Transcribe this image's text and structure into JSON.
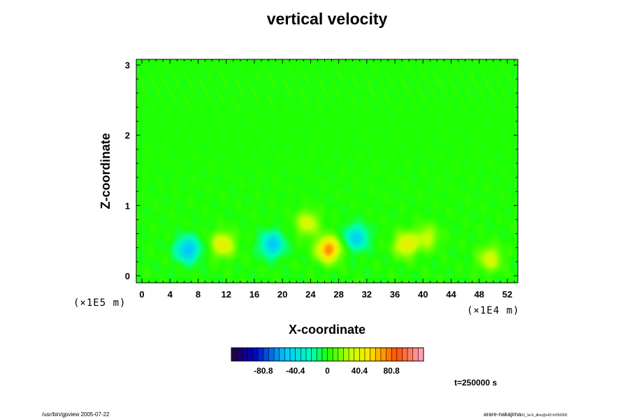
{
  "chart_data": {
    "type": "heatmap",
    "title": "vertical velocity",
    "xlabel": "X-coordinate",
    "ylabel": "Z-coordinate",
    "x_ticks": [
      "0",
      "4",
      "8",
      "12",
      "16",
      "20",
      "24",
      "28",
      "32",
      "36",
      "40",
      "44",
      "48",
      "52"
    ],
    "y_ticks": [
      "0",
      "1",
      "2",
      "3"
    ],
    "xlim": [
      -0.8,
      53.5
    ],
    "ylim": [
      -0.1,
      3.08
    ],
    "x_scale_note": "(×1E4 m)",
    "y_scale_note": "(×1E5 m)",
    "colorbar": {
      "tick_labels": [
        "-80.8",
        "-40.4",
        "0",
        "40.4",
        "80.8"
      ],
      "ticks": [
        -80.8,
        -40.4,
        0,
        40.4,
        80.8
      ],
      "range": [
        -121.2,
        121.2
      ]
    },
    "time_label": "t=250000 s",
    "features": [
      {
        "x": 6.5,
        "z": 0.38,
        "value": -55
      },
      {
        "x": 18.5,
        "z": 0.45,
        "value": -50
      },
      {
        "x": 30.5,
        "z": 0.55,
        "value": -45
      },
      {
        "x": 11.5,
        "z": 0.45,
        "value": 45
      },
      {
        "x": 26.5,
        "z": 0.38,
        "value": 75
      },
      {
        "x": 23.5,
        "z": 0.75,
        "value": 35
      },
      {
        "x": 37.5,
        "z": 0.45,
        "value": 45
      },
      {
        "x": 40.5,
        "z": 0.55,
        "value": 30
      },
      {
        "x": 49.5,
        "z": 0.25,
        "value": 35
      }
    ]
  },
  "footer_left": "/usr/bin/gpview 2005-07-22",
  "footer_right": "arare-nakajima",
  "footer_right_small": "03_1e-6_dlno@v42:t=250000"
}
